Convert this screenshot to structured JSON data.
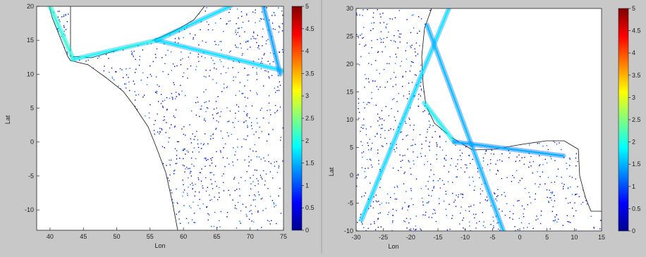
{
  "figure": {
    "panels": [
      {
        "xlabel": "Lon",
        "ylabel": "Lat",
        "xticks": [
          "40",
          "45",
          "50",
          "55",
          "60",
          "65",
          "70",
          "75"
        ],
        "yticks": [
          "20",
          "15",
          "10",
          "5",
          "0",
          "-5",
          "-10"
        ],
        "cbar_ticks": [
          "5",
          "4.5",
          "4",
          "3.5",
          "3",
          "2.5",
          "2",
          "1.5",
          "1",
          "0.5",
          "0"
        ]
      },
      {
        "xlabel": "Lon",
        "ylabel": "Lat",
        "xticks": [
          "-30",
          "-25",
          "-20",
          "-15",
          "-10",
          "-5",
          "0",
          "5",
          "10",
          "15"
        ],
        "yticks": [
          "30",
          "25",
          "20",
          "15",
          "10",
          "5",
          "0",
          "-5",
          "-10"
        ],
        "cbar_ticks": [
          "5",
          "4.5",
          "4",
          "3.5",
          "3",
          "2.5",
          "2",
          "1.5",
          "1",
          "0.5",
          "0"
        ]
      }
    ]
  },
  "chart_data": [
    {
      "type": "heatmap",
      "title": "",
      "xlabel": "Lon",
      "ylabel": "Lat",
      "xlim": [
        38,
        75
      ],
      "ylim": [
        -13,
        20
      ],
      "xticks": [
        40,
        45,
        50,
        55,
        60,
        65,
        70,
        75
      ],
      "yticks": [
        -10,
        -5,
        0,
        5,
        10,
        15,
        20
      ],
      "colorbar": {
        "range": [
          0,
          5
        ],
        "ticks": [
          0,
          0.5,
          1,
          1.5,
          2,
          2.5,
          3,
          3.5,
          4,
          4.5,
          5
        ],
        "colormap": "jet"
      },
      "grid": false,
      "land_color": "#ffffff",
      "shipping_lanes": [
        {
          "from": [
            43.5,
            12.2
          ],
          "to": [
            56,
            15
          ],
          "intensity": 2.0
        },
        {
          "from": [
            56,
            15
          ],
          "to": [
            75,
            10.5
          ],
          "intensity": 1.8
        },
        {
          "from": [
            56,
            15
          ],
          "to": [
            67,
            20
          ],
          "intensity": 1.8
        },
        {
          "from": [
            40,
            20
          ],
          "to": [
            43.5,
            12.2
          ],
          "intensity": 2.2
        },
        {
          "from": [
            72,
            20
          ],
          "to": [
            74.5,
            10
          ],
          "intensity": 1.5
        }
      ]
    },
    {
      "type": "heatmap",
      "title": "",
      "xlabel": "Lon",
      "ylabel": "Lat",
      "xlim": [
        -30,
        15
      ],
      "ylim": [
        -10,
        30
      ],
      "xticks": [
        -30,
        -25,
        -20,
        -15,
        -10,
        -5,
        0,
        5,
        10,
        15
      ],
      "yticks": [
        -10,
        -5,
        0,
        5,
        10,
        15,
        20,
        25,
        30
      ],
      "colorbar": {
        "range": [
          0,
          5
        ],
        "ticks": [
          0,
          0.5,
          1,
          1.5,
          2,
          2.5,
          3,
          3.5,
          4,
          4.5,
          5
        ],
        "colormap": "jet"
      },
      "grid": false,
      "land_color": "#ffffff",
      "shipping_lanes": [
        {
          "from": [
            -13,
            30
          ],
          "to": [
            -29,
            -8
          ],
          "intensity": 1.8
        },
        {
          "from": [
            -17,
            27
          ],
          "to": [
            -3,
            -10
          ],
          "intensity": 1.6
        },
        {
          "from": [
            -17.5,
            13
          ],
          "to": [
            -12,
            6
          ],
          "intensity": 2.0
        },
        {
          "from": [
            -12,
            6
          ],
          "to": [
            8,
            3.5
          ],
          "intensity": 1.5
        }
      ]
    }
  ]
}
